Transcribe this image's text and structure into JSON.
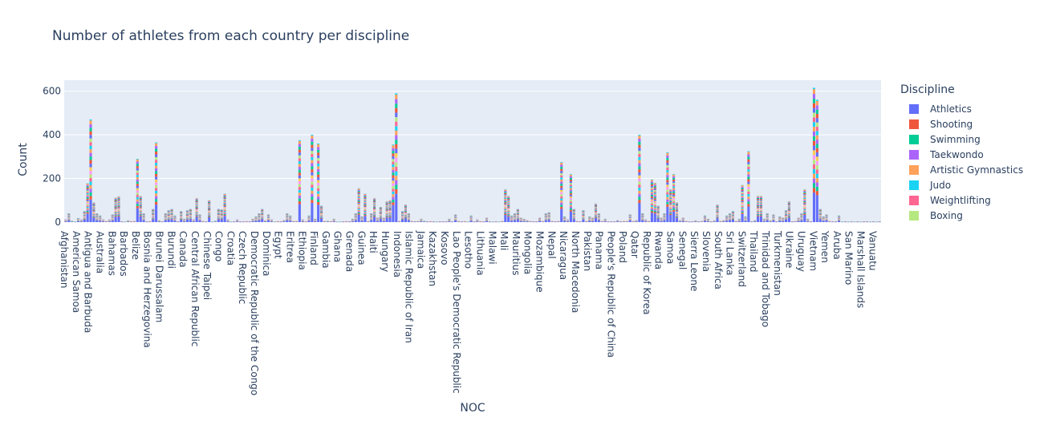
{
  "chart_data": {
    "type": "bar",
    "barmode": "stack",
    "title": "Number of athletes from each country per discipline",
    "xlabel": "NOC",
    "ylabel": "Count",
    "ylim": [
      0,
      650
    ],
    "yticks": [
      0,
      200,
      400,
      600
    ],
    "grid": true,
    "legend_title": "Discipline",
    "legend_position": "right",
    "tick_labels": [
      "Afghanistan",
      "American Samoa",
      "Antigua and Barbuda",
      "Australia",
      "Bahamas",
      "Barbados",
      "Belize",
      "Bosnia and Herzegovina",
      "Brunei Darussalam",
      "Burundi",
      "Canada",
      "Central African Republic",
      "Chinese Taipei",
      "Congo",
      "Croatia",
      "Czech Republic",
      "Democratic Republic of the Congo",
      "Dominica",
      "Egypt",
      "Eritrea",
      "Ethiopia",
      "Finland",
      "Gambia",
      "Ghana",
      "Grenada",
      "Guinea",
      "Haiti",
      "Hungary",
      "Indonesia",
      "Islamic Republic of Iran",
      "Jamaica",
      "Kazakhstan",
      "Kosovo",
      "Lao People's Democratic Republic",
      "Lesotho",
      "Lithuania",
      "Malawi",
      "Mali",
      "Mauritius",
      "Mongolia",
      "Mozambique",
      "Nepal",
      "Nicaragua",
      "North Macedonia",
      "Pakistan",
      "Panama",
      "People's Republic of China",
      "Poland",
      "Qatar",
      "Republic of Korea",
      "Rwanda",
      "Samoa",
      "Senegal",
      "Sierra Leone",
      "Slovenia",
      "South Africa",
      "Sri Lanka",
      "Switzerland",
      "Thailand",
      "Trinidad and Tobago",
      "Turkmenistan",
      "Ukraine",
      "Uruguay",
      "Vietnam",
      "Yemen",
      "Aruba",
      "San Marino",
      "Marshall Islands",
      "Vanuatu"
    ],
    "totals": [
      12,
      40,
      6,
      2,
      18,
      12,
      50,
      178,
      470,
      90,
      40,
      30,
      12,
      5,
      12,
      35,
      112,
      118,
      3,
      2,
      8,
      4,
      5,
      290,
      120,
      40,
      3,
      4,
      60,
      365,
      8,
      3,
      40,
      55,
      60,
      30,
      3,
      50,
      15,
      55,
      60,
      12,
      110,
      35,
      5,
      3,
      100,
      2,
      6,
      60,
      58,
      130,
      12,
      2,
      3,
      12,
      3,
      3,
      4,
      3,
      15,
      25,
      40,
      60,
      8,
      35,
      12,
      2,
      4,
      3,
      10,
      40,
      30,
      5,
      5,
      375,
      12,
      4,
      30,
      400,
      15,
      360,
      75,
      5,
      6,
      4,
      15,
      2,
      2,
      3,
      4,
      3,
      15,
      40,
      155,
      25,
      130,
      5,
      40,
      110,
      20,
      70,
      20,
      95,
      100,
      355,
      590,
      5,
      50,
      80,
      40,
      5,
      3,
      5,
      15,
      6,
      3,
      4,
      3,
      2,
      3,
      3,
      3,
      15,
      3,
      35,
      5,
      3,
      4,
      2,
      30,
      3,
      12,
      4,
      3,
      20,
      3,
      2,
      3,
      2,
      5,
      150,
      120,
      30,
      40,
      60,
      20,
      15,
      10,
      5,
      3,
      3,
      20,
      5,
      40,
      45,
      5,
      3,
      5,
      275,
      25,
      12,
      220,
      60,
      5,
      3,
      55,
      5,
      25,
      20,
      85,
      40,
      5,
      15,
      3,
      3,
      3,
      10,
      3,
      5,
      5,
      35,
      5,
      10,
      400,
      40,
      12,
      5,
      195,
      180,
      75,
      20,
      40,
      320,
      150,
      220,
      90,
      10,
      20,
      5,
      3,
      3,
      8,
      3,
      5,
      30,
      15,
      3,
      8,
      80,
      5,
      10,
      30,
      40,
      50,
      5,
      15,
      170,
      25,
      325,
      3,
      10,
      120,
      120,
      15,
      40,
      8,
      35,
      3,
      25,
      20,
      55,
      95,
      3,
      5,
      20,
      40,
      150,
      15,
      3,
      615,
      560,
      60,
      25,
      35,
      5,
      3,
      3,
      30,
      2,
      3,
      2,
      3,
      2,
      3,
      2,
      3,
      3,
      2,
      3,
      2,
      3
    ],
    "series": [
      {
        "name": "Athletics",
        "color": "#636efa",
        "share": 0.22
      },
      {
        "name": "Shooting",
        "color": "#EF553B",
        "share": 0.08
      },
      {
        "name": "Swimming",
        "color": "#00cc96",
        "share": 0.12
      },
      {
        "name": "Taekwondo",
        "color": "#ab63fa",
        "share": 0.1
      },
      {
        "name": "Artistic Gymnastics",
        "color": "#FFA15A",
        "share": 0.12
      },
      {
        "name": "Judo",
        "color": "#19d3f3",
        "share": 0.14
      },
      {
        "name": "Weightlifting",
        "color": "#FF6692",
        "share": 0.08
      },
      {
        "name": "Boxing",
        "color": "#B6E880",
        "share": 0.14
      }
    ],
    "extra_colors": [
      "#FF97FF",
      "#FECB52",
      "#636efa",
      "#EF553B",
      "#00cc96",
      "#ab63fa",
      "#FFA15A",
      "#19d3f3",
      "#FF6692",
      "#B6E880"
    ]
  }
}
